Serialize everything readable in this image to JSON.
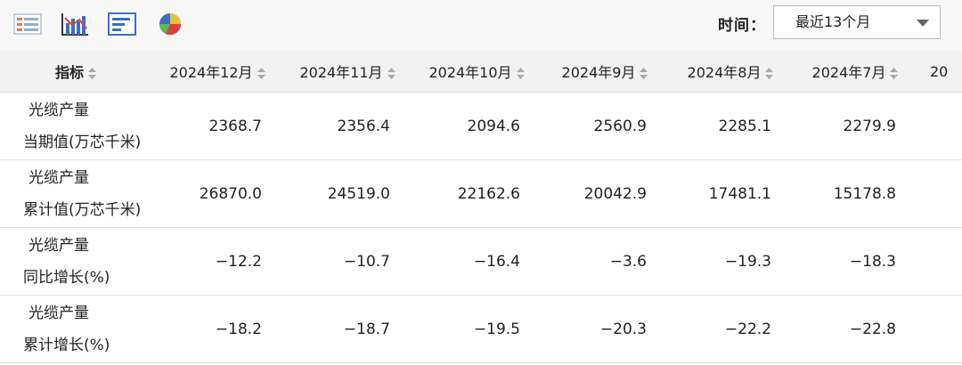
{
  "toolbar": {
    "time_label": "时间：",
    "time_select": "最近13个月"
  },
  "table": {
    "headers": [
      "指标",
      "2024年12月",
      "2024年11月",
      "2024年10月",
      "2024年9月",
      "2024年8月",
      "2024年7月",
      "20"
    ],
    "rows": [
      {
        "label": [
          "光缆产量",
          "当期值(万芯千米)"
        ],
        "values": [
          "2368.7",
          "2356.4",
          "2094.6",
          "2560.9",
          "2285.1",
          "2279.9"
        ]
      },
      {
        "label": [
          "光缆产量",
          "累计值(万芯千米)"
        ],
        "values": [
          "26870.0",
          "24519.0",
          "22162.6",
          "20042.9",
          "17481.1",
          "15178.8"
        ]
      },
      {
        "label": [
          "光缆产量",
          "同比增长(%)"
        ],
        "values": [
          "−12.2",
          "−10.7",
          "−16.4",
          "−3.6",
          "−19.3",
          "−18.3"
        ]
      },
      {
        "label": [
          "光缆产量",
          "累计增长(%)"
        ],
        "values": [
          "−18.2",
          "−18.7",
          "−19.5",
          "−20.3",
          "−22.2",
          "−22.8"
        ]
      }
    ]
  }
}
